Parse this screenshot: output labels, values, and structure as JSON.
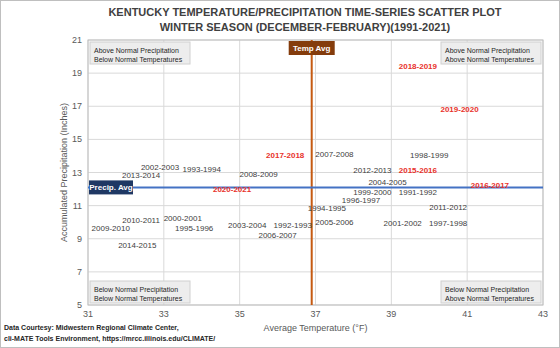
{
  "chart_data": {
    "type": "scatter",
    "title": "KENTUCKY TEMPERATURE/PRECIPITATION TIME-SERIES SCATTER PLOT",
    "subtitle": "WINTER SEASON (DECEMBER-FEBRUARY)(1991-2021)",
    "x_label": "Average Temperature (°F)",
    "y_label": "Accumulated Precipitation (Inches)",
    "marker": "label",
    "categories": [
      "1991-1992",
      "1992-1993",
      "1993-1994",
      "1994-1995",
      "1995-1996",
      "1996-1997",
      "1997-1998",
      "1998-1999",
      "1999-2000",
      "2000-2001",
      "2001-2002",
      "2002-2003",
      "2003-2004",
      "2004-2005",
      "2005-2006",
      "2006-2007",
      "2007-2008",
      "2008-2009",
      "2009-2010",
      "2010-2011",
      "2011-2012",
      "2012-2013",
      "2013-2014",
      "2014-2015",
      "2015-2016",
      "2016-2017",
      "2017-2018",
      "2018-2019",
      "2019-2020",
      "2020-2021"
    ],
    "x": [
      39.7,
      36.4,
      34.0,
      37.3,
      33.8,
      38.2,
      40.5,
      40.0,
      38.5,
      33.5,
      39.3,
      32.9,
      35.2,
      38.9,
      37.5,
      36.0,
      37.5,
      35.5,
      31.6,
      32.4,
      40.5,
      38.5,
      32.4,
      32.3,
      39.7,
      41.6,
      36.2,
      39.7,
      40.8,
      34.8
    ],
    "values": [
      11.8,
      9.8,
      13.2,
      10.8,
      9.6,
      11.3,
      9.9,
      14.0,
      11.8,
      10.2,
      9.9,
      13.3,
      9.8,
      12.4,
      10.0,
      9.2,
      14.1,
      12.9,
      9.6,
      10.1,
      10.9,
      13.1,
      12.8,
      8.6,
      13.1,
      12.2,
      14.0,
      19.4,
      16.8,
      12.0
    ],
    "colors": [
      "#404040",
      "#404040",
      "#404040",
      "#404040",
      "#404040",
      "#404040",
      "#404040",
      "#404040",
      "#404040",
      "#404040",
      "#404040",
      "#404040",
      "#404040",
      "#404040",
      "#404040",
      "#404040",
      "#404040",
      "#404040",
      "#404040",
      "#404040",
      "#404040",
      "#404040",
      "#404040",
      "#404040",
      "#e8322b",
      "#e8322b",
      "#e8322b",
      "#e8322b",
      "#e8322b",
      "#e8322b"
    ],
    "xlim": [
      31,
      43
    ],
    "ylim": [
      5,
      21
    ],
    "xticks": [
      31,
      33,
      35,
      37,
      39,
      41,
      43
    ],
    "yticks": [
      5,
      7,
      9,
      11,
      13,
      15,
      17,
      19,
      21
    ],
    "grid": true,
    "temp_avg": {
      "label": "Temp Avg",
      "value": 36.9
    },
    "precip_avg": {
      "label": "Precip. Avg",
      "value": 12.1
    },
    "quadrant_labels": [
      [
        "Above Normal Precipitation",
        "Below Normal Temperatures"
      ],
      [
        "Above Normal Precipitation",
        "Above Normal Temperatures"
      ],
      [
        "Below Normal Precipitation",
        "Below Normal Temperatures"
      ],
      [
        "Below Normal Precipitation",
        "Above Normal Temperatures"
      ]
    ],
    "source": [
      "Data Courtesy: Midwestern Regional Climate Center,",
      "cli-MATE Tools Environment, https://mrcc.illinois.edu/CLIMATE/"
    ]
  }
}
